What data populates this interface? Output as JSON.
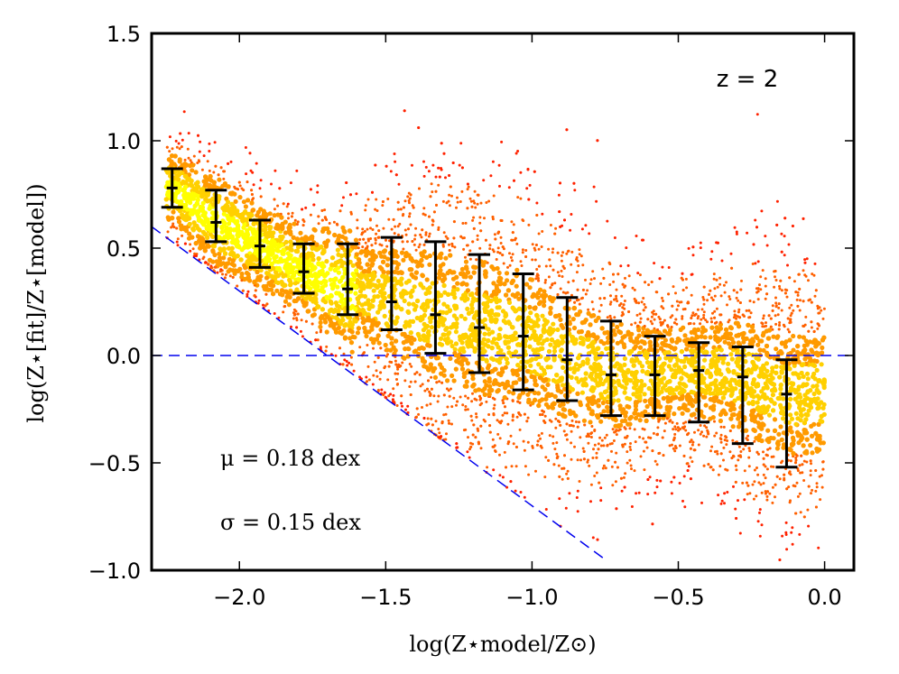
{
  "chart_data": {
    "type": "scatter",
    "title": "",
    "xlabel": "log(Z⋆model/Z⊙)",
    "ylabel": "log(Z⋆[fit]/Z⋆[model])",
    "xlim": [
      -2.3,
      0.1
    ],
    "ylim": [
      -1.0,
      1.5
    ],
    "x_ticks": [
      -2.0,
      -1.5,
      -1.0,
      -0.5,
      0.0
    ],
    "x_tick_labels": [
      "−2.0",
      "−1.5",
      "−1.0",
      "−0.5",
      "0.0"
    ],
    "y_ticks": [
      -1.0,
      -0.5,
      0.0,
      0.5,
      1.0,
      1.5
    ],
    "y_tick_labels": [
      "−1.0",
      "−0.5",
      "0.0",
      "0.5",
      "1.0",
      "1.5"
    ],
    "annotations": {
      "redshift": "z = 2",
      "mu": "μ = 0.18 dex",
      "sigma": "σ = 0.15 dex"
    },
    "reference_lines": [
      {
        "name": "zero-line",
        "style": "dashed",
        "color": "#0000ee",
        "x": [
          -2.3,
          0.1
        ],
        "y": [
          0.0,
          0.0
        ]
      },
      {
        "name": "lower-limit-line",
        "style": "dashed",
        "color": "#0000ee",
        "x": [
          -2.3,
          -0.75
        ],
        "y": [
          0.6,
          -0.95
        ]
      }
    ],
    "binned_medians": {
      "x": [
        -2.23,
        -2.08,
        -1.93,
        -1.78,
        -1.63,
        -1.48,
        -1.33,
        -1.18,
        -1.03,
        -0.88,
        -0.73,
        -0.58,
        -0.43,
        -0.28,
        -0.13
      ],
      "y": [
        0.78,
        0.62,
        0.51,
        0.39,
        0.31,
        0.25,
        0.19,
        0.13,
        0.09,
        -0.02,
        -0.09,
        -0.09,
        -0.07,
        -0.1,
        -0.18
      ],
      "y_low": [
        0.69,
        0.53,
        0.41,
        0.29,
        0.19,
        0.12,
        0.01,
        -0.08,
        -0.16,
        -0.21,
        -0.28,
        -0.28,
        -0.31,
        -0.41,
        -0.52
      ],
      "y_high": [
        0.87,
        0.77,
        0.63,
        0.52,
        0.52,
        0.55,
        0.53,
        0.47,
        0.38,
        0.27,
        0.16,
        0.09,
        0.06,
        0.04,
        -0.02
      ]
    },
    "scatter_colors": [
      "#ffff00",
      "#ffd000",
      "#ff9a00",
      "#ff6000",
      "#ff2200"
    ]
  }
}
